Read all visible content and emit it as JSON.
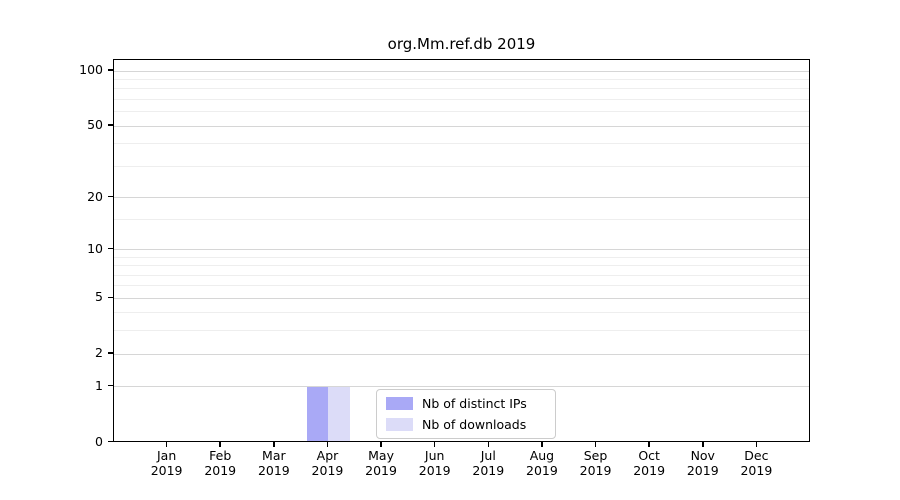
{
  "title": "org.Mm.ref.db 2019",
  "colors": {
    "background": "#ffffff",
    "spine": "#000000",
    "grid_major": "#d6d6d6",
    "grid_minor": "#eeeeee",
    "legend_border": "#cccccc",
    "series_ips": "#a9a9f6",
    "series_downloads": "#dcdcf8"
  },
  "chart_data": {
    "type": "bar",
    "title": "org.Mm.ref.db 2019",
    "xlabel": "",
    "ylabel": "",
    "categories": [
      "Jan",
      "Feb",
      "Mar",
      "Apr",
      "May",
      "Jun",
      "Jul",
      "Aug",
      "Sep",
      "Oct",
      "Nov",
      "Dec"
    ],
    "x_tick_year": "2019",
    "series": [
      {
        "name": "Nb of distinct IPs",
        "color": "#a9a9f6",
        "values": [
          0,
          0,
          0,
          1,
          0,
          0,
          0,
          0,
          0,
          0,
          0,
          0
        ]
      },
      {
        "name": "Nb of downloads",
        "color": "#dcdcf8",
        "values": [
          0,
          0,
          0,
          1,
          0,
          0,
          0,
          0,
          0,
          0,
          0,
          0
        ]
      }
    ],
    "yscale": "log1p",
    "yticks": [
      0,
      1,
      2,
      5,
      10,
      20,
      50,
      100
    ],
    "yticks_minor": [
      3,
      4,
      6,
      7,
      8,
      9,
      15,
      30,
      40,
      60,
      70,
      80,
      90
    ],
    "ylim": [
      0,
      115
    ],
    "grid": true,
    "legend_position": "lower center"
  },
  "legend": {
    "items": [
      {
        "label": "Nb of distinct IPs"
      },
      {
        "label": "Nb of downloads"
      }
    ]
  }
}
